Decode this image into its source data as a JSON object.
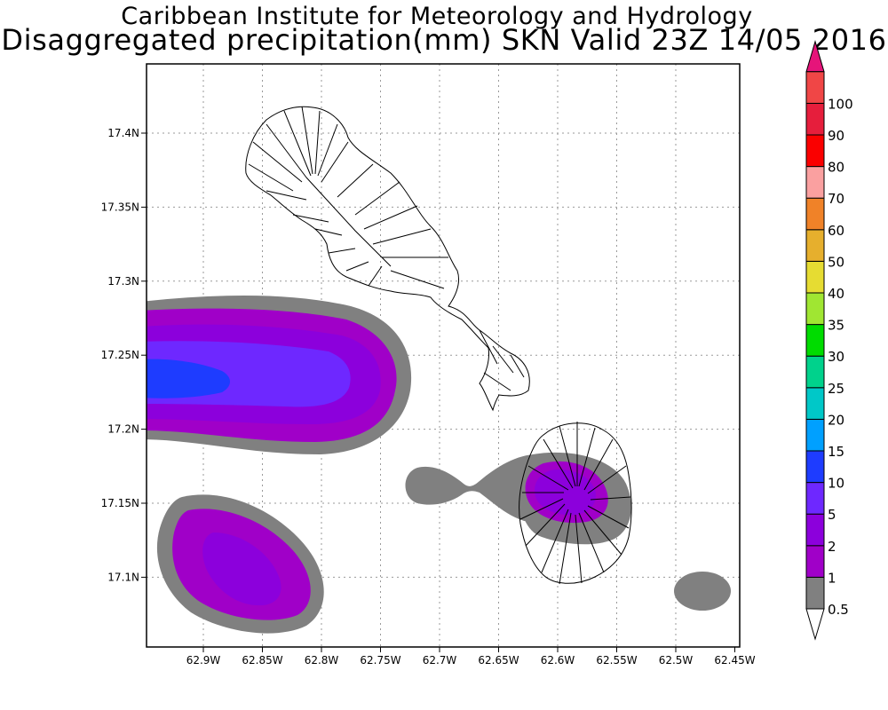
{
  "header": {
    "line1": "Caribbean Institute for Meteorology and Hydrology",
    "line2": "Disaggregated precipitation(mm) SKN Valid 23Z 14/05 2016"
  },
  "x_ticks": [
    "62.9W",
    "62.85W",
    "62.8W",
    "62.75W",
    "62.7W",
    "62.65W",
    "62.6W",
    "62.55W",
    "62.5W",
    "62.45W"
  ],
  "y_ticks": [
    "17.4N",
    "17.35N",
    "17.3N",
    "17.25N",
    "17.2N",
    "17.15N",
    "17.1N"
  ],
  "colorbar": {
    "levels": [
      {
        "label": "0.5",
        "color": "#808080"
      },
      {
        "label": "1",
        "color": "#a000c8"
      },
      {
        "label": "2",
        "color": "#8c00dc"
      },
      {
        "label": "5",
        "color": "#6e28ff"
      },
      {
        "label": "10",
        "color": "#1e3cff"
      },
      {
        "label": "15",
        "color": "#00a0ff"
      },
      {
        "label": "20",
        "color": "#00c8c8"
      },
      {
        "label": "25",
        "color": "#00d28c"
      },
      {
        "label": "30",
        "color": "#00dc00"
      },
      {
        "label": "35",
        "color": "#a0e632"
      },
      {
        "label": "40",
        "color": "#e6dc32"
      },
      {
        "label": "50",
        "color": "#e6af2d"
      },
      {
        "label": "60",
        "color": "#f08228"
      },
      {
        "label": "70",
        "color": "#faa0a0"
      },
      {
        "label": "80",
        "color": "#fa0000"
      },
      {
        "label": "90",
        "color": "#e61e3c"
      },
      {
        "label": "100",
        "color": "#f04646"
      }
    ],
    "arrow_top_color": "#e6147a",
    "arrow_bottom_color": "#ffffff"
  }
}
